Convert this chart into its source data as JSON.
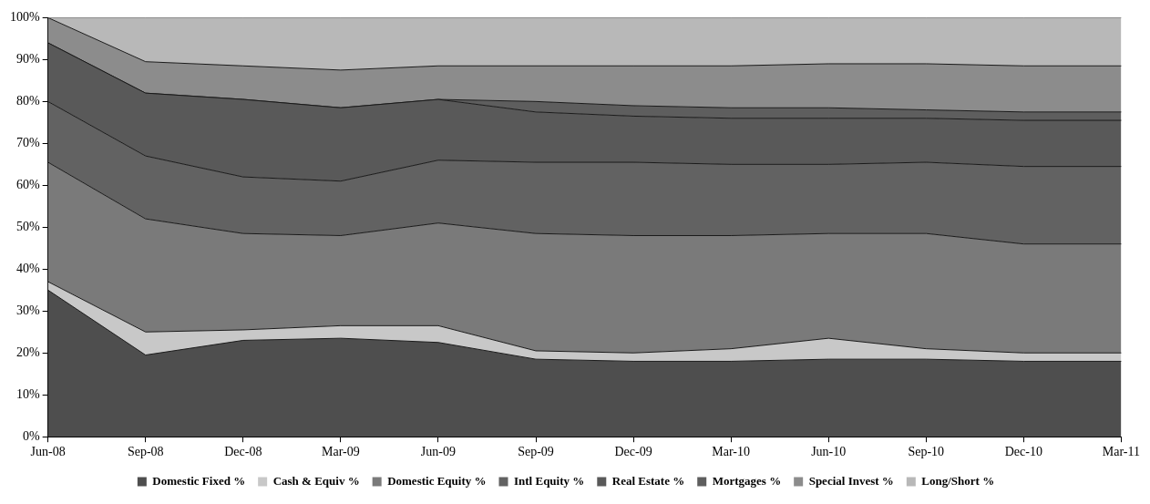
{
  "chart_data": {
    "type": "area",
    "stacked": true,
    "legend": "bottom",
    "marker": "none",
    "categories": [
      "Jun-08",
      "Sep-08",
      "Dec-08",
      "Mar-09",
      "Jun-09",
      "Sep-09",
      "Dec-09",
      "Mar-10",
      "Jun-10",
      "Sep-10",
      "Dec-10",
      "Mar-11"
    ],
    "ylim": [
      0,
      100
    ],
    "yticks": [
      {
        "value": 0,
        "label": "0%"
      },
      {
        "value": 10,
        "label": "10%"
      },
      {
        "value": 20,
        "label": "20%"
      },
      {
        "value": 30,
        "label": "30%"
      },
      {
        "value": 40,
        "label": "40%"
      },
      {
        "value": 50,
        "label": "50%"
      },
      {
        "value": 60,
        "label": "60%"
      },
      {
        "value": 70,
        "label": "70%"
      },
      {
        "value": 80,
        "label": "80%"
      },
      {
        "value": 90,
        "label": "90%"
      },
      {
        "value": 100,
        "label": "100%"
      }
    ],
    "series": [
      {
        "name": "Domestic Fixed %",
        "color": "#4e4e4e",
        "values": [
          35,
          19.5,
          23,
          23.5,
          22.5,
          18.5,
          18,
          18,
          18.5,
          18.5,
          18,
          18
        ]
      },
      {
        "name": "Cash & Equiv %",
        "color": "#c8c8c8",
        "values": [
          2,
          5.5,
          2.5,
          3,
          4,
          2,
          2,
          3,
          5,
          2.5,
          2,
          2
        ]
      },
      {
        "name": "Domestic Equity %",
        "color": "#7a7a7a",
        "values": [
          28.5,
          27,
          23,
          21.5,
          24.5,
          28,
          28,
          27,
          25,
          27.5,
          26,
          26
        ]
      },
      {
        "name": "Intl Equity %",
        "color": "#626262",
        "values": [
          14.5,
          15,
          13.5,
          13,
          15,
          17,
          17.5,
          17,
          16.5,
          17,
          18.5,
          18.5
        ]
      },
      {
        "name": "Real Estate %",
        "color": "#595959",
        "values": [
          14,
          15,
          18.5,
          17.5,
          14.5,
          12,
          11,
          11,
          11,
          10.5,
          11,
          11
        ]
      },
      {
        "name": "Mortgages %",
        "color": "#5e5e5e",
        "values": [
          0,
          0,
          0,
          0,
          0,
          2.5,
          2.5,
          2.5,
          2.5,
          2,
          2,
          2
        ]
      },
      {
        "name": "Special Invest %",
        "color": "#8c8c8c",
        "values": [
          6,
          7.5,
          8,
          9,
          8,
          8.5,
          9.5,
          10,
          10.5,
          11,
          11,
          11
        ]
      },
      {
        "name": "Long/Short %",
        "color": "#b8b8b8",
        "values": [
          0,
          10.5,
          11.5,
          12.5,
          11.5,
          11.5,
          11.5,
          11.5,
          11,
          11,
          11.5,
          11.5
        ]
      }
    ]
  }
}
